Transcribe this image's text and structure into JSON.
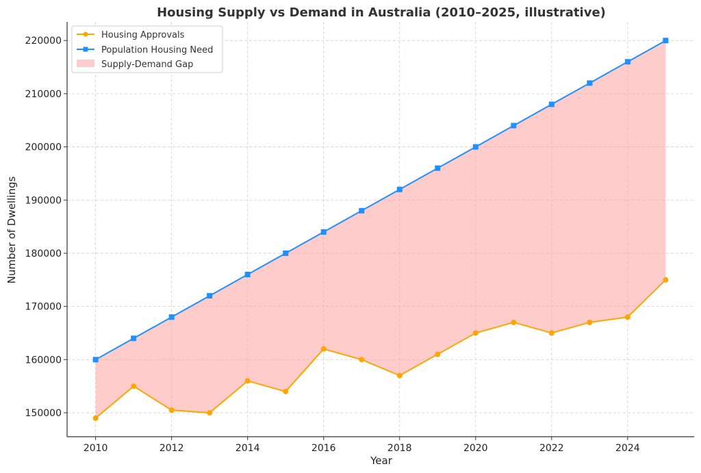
{
  "chart_data": {
    "type": "line",
    "title": "Housing Supply vs Demand in Australia (2010–2025, illustrative)",
    "xlabel": "Year",
    "ylabel": "Number of Dwellings",
    "x": [
      2010,
      2011,
      2012,
      2013,
      2014,
      2015,
      2016,
      2017,
      2018,
      2019,
      2020,
      2021,
      2022,
      2023,
      2024,
      2025
    ],
    "xlim": [
      2009.25,
      2025.75
    ],
    "ylim": [
      145500,
      223500
    ],
    "x_ticks": [
      2010,
      2012,
      2014,
      2016,
      2018,
      2020,
      2022,
      2024
    ],
    "y_ticks": [
      150000,
      160000,
      170000,
      180000,
      190000,
      200000,
      210000,
      220000
    ],
    "grid": true,
    "legend_position": "top-left",
    "series": [
      {
        "name": "Housing Approvals",
        "color": "#ffa500",
        "marker": "circle",
        "values": [
          149000,
          155000,
          150500,
          150000,
          156000,
          154000,
          162000,
          160000,
          157000,
          161000,
          165000,
          167000,
          165000,
          167000,
          168000,
          175000
        ]
      },
      {
        "name": "Population Housing Need",
        "color": "#1e90ff",
        "marker": "square",
        "values": [
          160000,
          164000,
          168000,
          172000,
          176000,
          180000,
          184000,
          188000,
          192000,
          196000,
          200000,
          204000,
          208000,
          212000,
          216000,
          220000
        ]
      }
    ],
    "fill_between": {
      "name": "Supply-Demand Gap",
      "color": "#ff9999",
      "opacity": 0.5
    }
  }
}
